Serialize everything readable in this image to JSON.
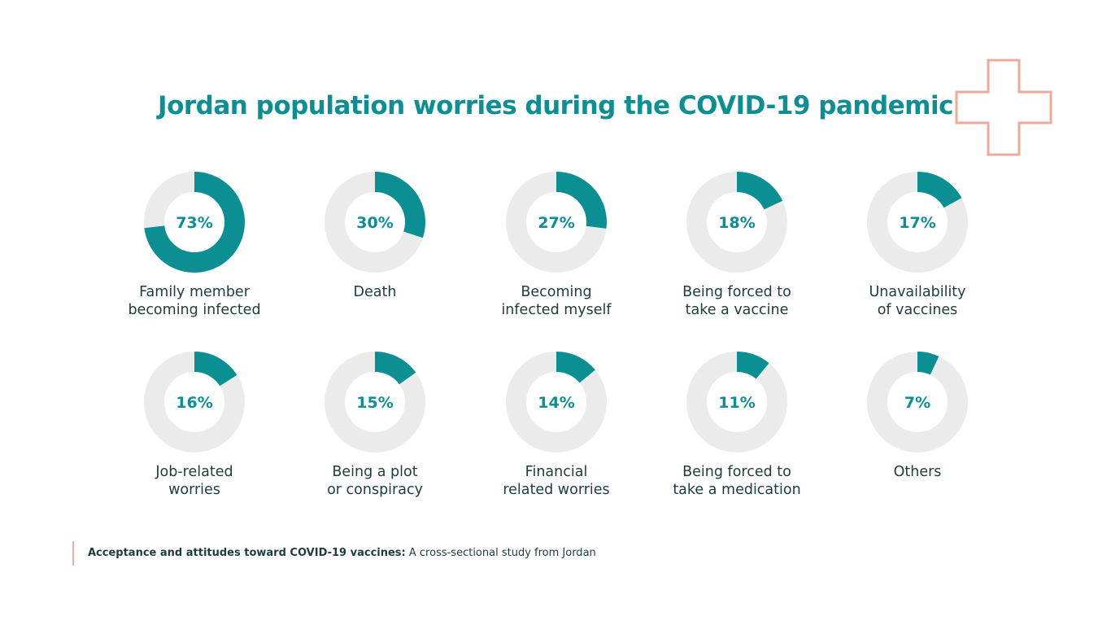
{
  "chart_data": {
    "type": "pie",
    "title": "Jordan population worries during the COVID-19 pandemic",
    "items": [
      {
        "label": "Family member becoming infected",
        "lines": [
          "Family member",
          "becoming infected"
        ],
        "value": 73,
        "display": "73%"
      },
      {
        "label": "Death",
        "lines": [
          "Death"
        ],
        "value": 30,
        "display": "30%"
      },
      {
        "label": "Becoming infected myself",
        "lines": [
          "Becoming",
          "infected myself"
        ],
        "value": 27,
        "display": "27%"
      },
      {
        "label": "Being forced to take a vaccine",
        "lines": [
          "Being forced to",
          "take a vaccine"
        ],
        "value": 18,
        "display": "18%"
      },
      {
        "label": "Unavailability of vaccines",
        "lines": [
          "Unavailability",
          "of vaccines"
        ],
        "value": 17,
        "display": "17%"
      },
      {
        "label": "Job-related worries",
        "lines": [
          "Job-related",
          "worries"
        ],
        "value": 16,
        "display": "16%"
      },
      {
        "label": "Being a plot or conspiracy",
        "lines": [
          "Being a plot",
          "or conspiracy"
        ],
        "value": 15,
        "display": "15%"
      },
      {
        "label": "Financial related worries",
        "lines": [
          "Financial",
          "related worries"
        ],
        "value": 14,
        "display": "14%"
      },
      {
        "label": "Being forced to take a medication",
        "lines": [
          "Being forced to",
          "take a medication"
        ],
        "value": 11,
        "display": "11%"
      },
      {
        "label": "Others",
        "lines": [
          "Others"
        ],
        "value": 7,
        "display": "7%"
      }
    ]
  },
  "source": {
    "bold": "Acceptance and attitudes toward COVID-19 vaccines:",
    "rest": " A cross-sectional study from Jordan"
  },
  "colors": {
    "accent": "#0b8f93",
    "track": "#ebebeb",
    "cross": "#f0a898"
  }
}
